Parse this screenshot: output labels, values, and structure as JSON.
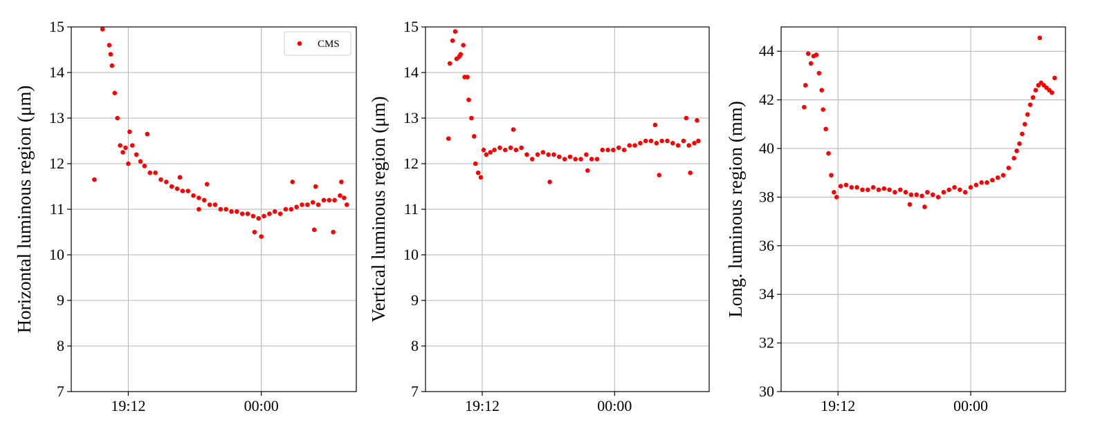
{
  "colors": {
    "series": "#ff0000",
    "grid": "#b0b0b0",
    "axes": "#000000"
  },
  "chart_data": [
    {
      "type": "scatter",
      "ylabel": "Horizontal luminous region (μm)",
      "xlabel": "",
      "ylim": [
        7,
        15
      ],
      "yticks": [
        7,
        8,
        9,
        10,
        11,
        12,
        13,
        14,
        15
      ],
      "xlim": [
        -1.0,
        20.0
      ],
      "xticks": [
        {
          "x": 3.2,
          "label": "19:12"
        },
        {
          "x": 13.0,
          "label": "00:00"
        }
      ],
      "grid": true,
      "legend": {
        "placement": "top-right",
        "entries": [
          "CMS"
        ]
      },
      "series": [
        {
          "name": "CMS",
          "points": [
            [
              0.7,
              11.65
            ],
            [
              1.3,
              14.95
            ],
            [
              1.8,
              14.6
            ],
            [
              1.9,
              14.4
            ],
            [
              2.0,
              14.15
            ],
            [
              2.2,
              13.55
            ],
            [
              2.4,
              13.0
            ],
            [
              2.6,
              12.4
            ],
            [
              2.8,
              12.25
            ],
            [
              3.0,
              12.35
            ],
            [
              3.2,
              12.0
            ],
            [
              3.5,
              12.4
            ],
            [
              3.8,
              12.2
            ],
            [
              4.1,
              12.05
            ],
            [
              4.4,
              11.95
            ],
            [
              4.8,
              11.8
            ],
            [
              5.2,
              11.8
            ],
            [
              5.6,
              11.65
            ],
            [
              6.0,
              11.6
            ],
            [
              6.4,
              11.5
            ],
            [
              6.8,
              11.45
            ],
            [
              7.2,
              11.4
            ],
            [
              7.6,
              11.4
            ],
            [
              8.0,
              11.3
            ],
            [
              8.4,
              11.25
            ],
            [
              8.8,
              11.2
            ],
            [
              9.2,
              11.1
            ],
            [
              9.6,
              11.1
            ],
            [
              10.0,
              11.0
            ],
            [
              10.4,
              11.0
            ],
            [
              10.8,
              10.95
            ],
            [
              11.2,
              10.95
            ],
            [
              11.6,
              10.9
            ],
            [
              12.0,
              10.9
            ],
            [
              12.4,
              10.85
            ],
            [
              12.8,
              10.8
            ],
            [
              13.2,
              10.85
            ],
            [
              13.6,
              10.9
            ],
            [
              14.0,
              10.95
            ],
            [
              14.4,
              10.9
            ],
            [
              14.8,
              11.0
            ],
            [
              15.2,
              11.0
            ],
            [
              15.6,
              11.05
            ],
            [
              16.0,
              11.1
            ],
            [
              16.4,
              11.1
            ],
            [
              16.8,
              11.15
            ],
            [
              17.2,
              11.1
            ],
            [
              17.6,
              11.2
            ],
            [
              18.0,
              11.2
            ],
            [
              18.4,
              11.2
            ],
            [
              18.8,
              11.3
            ],
            [
              19.1,
              11.25
            ],
            [
              19.3,
              11.1
            ],
            [
              3.3,
              12.7
            ],
            [
              4.6,
              12.65
            ],
            [
              9.0,
              11.55
            ],
            [
              15.3,
              11.6
            ],
            [
              17.0,
              11.5
            ],
            [
              18.9,
              11.6
            ],
            [
              16.9,
              10.55
            ],
            [
              18.3,
              10.5
            ],
            [
              13.0,
              10.4
            ],
            [
              12.5,
              10.5
            ],
            [
              8.4,
              11.0
            ],
            [
              7.0,
              11.7
            ]
          ]
        }
      ]
    },
    {
      "type": "scatter",
      "ylabel": "Vertical luminous region (μm)",
      "xlabel": "",
      "ylim": [
        7,
        15
      ],
      "yticks": [
        7,
        8,
        9,
        10,
        11,
        12,
        13,
        14,
        15
      ],
      "xlim": [
        -1.0,
        20.0
      ],
      "xticks": [
        {
          "x": 3.2,
          "label": "19:12"
        },
        {
          "x": 13.0,
          "label": "00:00"
        }
      ],
      "grid": true,
      "series": [
        {
          "name": "",
          "points": [
            [
              0.7,
              12.55
            ],
            [
              0.8,
              14.2
            ],
            [
              1.0,
              14.7
            ],
            [
              1.2,
              14.9
            ],
            [
              1.3,
              14.3
            ],
            [
              1.5,
              14.35
            ],
            [
              1.6,
              14.4
            ],
            [
              1.8,
              14.6
            ],
            [
              1.9,
              13.9
            ],
            [
              2.1,
              13.9
            ],
            [
              2.2,
              13.4
            ],
            [
              2.4,
              13.0
            ],
            [
              2.6,
              12.6
            ],
            [
              2.7,
              12.0
            ],
            [
              2.9,
              11.8
            ],
            [
              3.1,
              11.7
            ],
            [
              3.3,
              12.3
            ],
            [
              3.5,
              12.2
            ],
            [
              3.8,
              12.25
            ],
            [
              4.1,
              12.3
            ],
            [
              4.5,
              12.35
            ],
            [
              4.9,
              12.3
            ],
            [
              5.3,
              12.35
            ],
            [
              5.7,
              12.3
            ],
            [
              6.1,
              12.35
            ],
            [
              6.5,
              12.2
            ],
            [
              6.9,
              12.1
            ],
            [
              7.3,
              12.2
            ],
            [
              7.7,
              12.25
            ],
            [
              8.1,
              12.2
            ],
            [
              8.5,
              12.2
            ],
            [
              8.9,
              12.15
            ],
            [
              9.3,
              12.1
            ],
            [
              9.7,
              12.15
            ],
            [
              10.1,
              12.1
            ],
            [
              10.5,
              12.1
            ],
            [
              10.9,
              12.2
            ],
            [
              11.3,
              12.1
            ],
            [
              11.7,
              12.1
            ],
            [
              12.1,
              12.3
            ],
            [
              12.5,
              12.3
            ],
            [
              12.9,
              12.3
            ],
            [
              13.3,
              12.35
            ],
            [
              13.7,
              12.3
            ],
            [
              14.1,
              12.4
            ],
            [
              14.5,
              12.4
            ],
            [
              14.9,
              12.45
            ],
            [
              15.3,
              12.5
            ],
            [
              15.7,
              12.5
            ],
            [
              16.1,
              12.45
            ],
            [
              16.5,
              12.5
            ],
            [
              16.9,
              12.5
            ],
            [
              17.3,
              12.45
            ],
            [
              17.7,
              12.4
            ],
            [
              18.1,
              12.5
            ],
            [
              18.5,
              12.4
            ],
            [
              18.9,
              12.45
            ],
            [
              19.2,
              12.5
            ],
            [
              5.5,
              12.75
            ],
            [
              8.2,
              11.6
            ],
            [
              11.0,
              11.85
            ],
            [
              16.3,
              11.75
            ],
            [
              18.6,
              11.8
            ],
            [
              18.3,
              13.0
            ],
            [
              19.1,
              12.95
            ],
            [
              16.0,
              12.85
            ]
          ]
        }
      ]
    },
    {
      "type": "scatter",
      "ylabel": "Long. luminous region (mm)",
      "xlabel": "",
      "ylim": [
        30,
        45
      ],
      "yticks": [
        30,
        32,
        34,
        36,
        38,
        40,
        42,
        44
      ],
      "xlim": [
        -1.0,
        20.0
      ],
      "xticks": [
        {
          "x": 3.2,
          "label": "19:12"
        },
        {
          "x": 13.0,
          "label": "00:00"
        }
      ],
      "grid": true,
      "series": [
        {
          "name": "",
          "points": [
            [
              0.7,
              41.7
            ],
            [
              0.8,
              42.6
            ],
            [
              1.0,
              43.9
            ],
            [
              1.2,
              43.5
            ],
            [
              1.4,
              43.8
            ],
            [
              1.6,
              43.85
            ],
            [
              1.8,
              43.1
            ],
            [
              2.0,
              42.4
            ],
            [
              2.1,
              41.6
            ],
            [
              2.3,
              40.8
            ],
            [
              2.5,
              39.8
            ],
            [
              2.7,
              38.9
            ],
            [
              2.9,
              38.2
            ],
            [
              3.1,
              38.0
            ],
            [
              3.4,
              38.45
            ],
            [
              3.8,
              38.5
            ],
            [
              4.2,
              38.4
            ],
            [
              4.6,
              38.4
            ],
            [
              5.0,
              38.3
            ],
            [
              5.4,
              38.3
            ],
            [
              5.8,
              38.4
            ],
            [
              6.2,
              38.3
            ],
            [
              6.6,
              38.35
            ],
            [
              7.0,
              38.3
            ],
            [
              7.4,
              38.2
            ],
            [
              7.8,
              38.3
            ],
            [
              8.2,
              38.2
            ],
            [
              8.6,
              38.1
            ],
            [
              9.0,
              38.1
            ],
            [
              9.4,
              38.05
            ],
            [
              9.8,
              38.2
            ],
            [
              10.2,
              38.1
            ],
            [
              10.6,
              38.0
            ],
            [
              11.0,
              38.2
            ],
            [
              11.4,
              38.3
            ],
            [
              11.8,
              38.4
            ],
            [
              12.2,
              38.3
            ],
            [
              12.6,
              38.2
            ],
            [
              13.0,
              38.4
            ],
            [
              13.4,
              38.5
            ],
            [
              13.8,
              38.6
            ],
            [
              14.2,
              38.6
            ],
            [
              14.6,
              38.7
            ],
            [
              15.0,
              38.8
            ],
            [
              15.4,
              38.9
            ],
            [
              15.8,
              39.2
            ],
            [
              16.2,
              39.6
            ],
            [
              16.4,
              39.9
            ],
            [
              16.6,
              40.2
            ],
            [
              16.8,
              40.6
            ],
            [
              17.0,
              41.0
            ],
            [
              17.2,
              41.4
            ],
            [
              17.4,
              41.8
            ],
            [
              17.6,
              42.1
            ],
            [
              17.8,
              42.4
            ],
            [
              18.0,
              42.6
            ],
            [
              18.2,
              42.7
            ],
            [
              18.4,
              42.6
            ],
            [
              18.6,
              42.5
            ],
            [
              18.8,
              42.4
            ],
            [
              19.0,
              42.3
            ],
            [
              19.2,
              42.9
            ],
            [
              18.1,
              44.55
            ],
            [
              8.5,
              37.7
            ],
            [
              9.6,
              37.6
            ]
          ]
        }
      ]
    }
  ]
}
